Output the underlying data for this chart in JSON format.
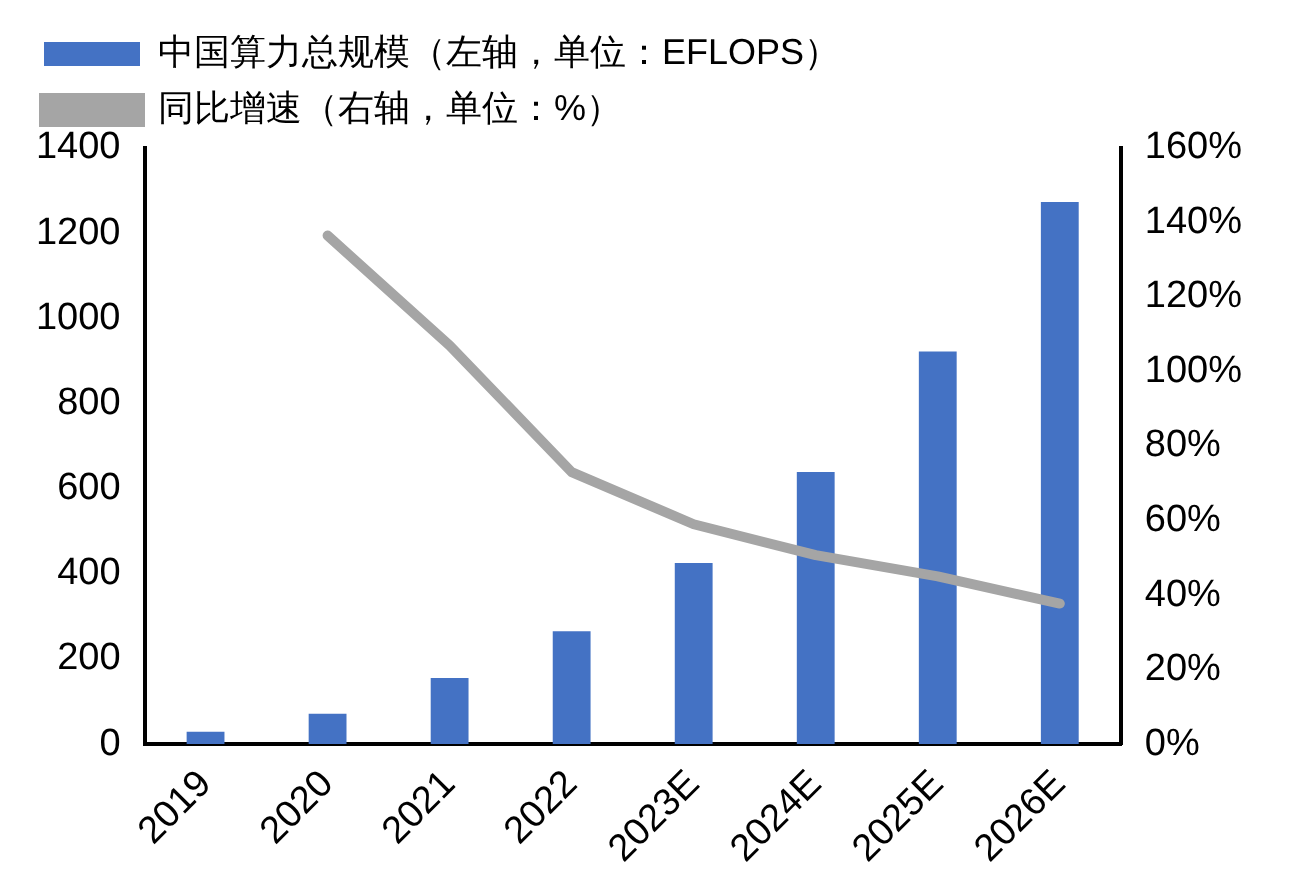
{
  "chart_data": {
    "type": "bar",
    "categories": [
      "2019",
      "2020",
      "2021",
      "2022",
      "2023E",
      "2024E",
      "2025E",
      "2026E"
    ],
    "series": [
      {
        "name": "中国算力总规模（左轴，单位：EFLOPS）",
        "color": "#4472c4",
        "values": [
          29,
          71,
          155,
          265,
          425,
          639,
          922,
          1273
        ]
      },
      {
        "name": "同比增速（右轴，单位：%）",
        "type": "line",
        "axis": "y2",
        "color": "#a5a5a5",
        "marker": "none",
        "values": [
          null,
          136.5,
          107,
          73,
          59,
          50.7,
          45,
          37.7
        ]
      }
    ],
    "ylim": [
      0,
      1400
    ],
    "yticks": [
      0,
      200,
      400,
      600,
      800,
      1000,
      1200,
      1400
    ],
    "y2lim": [
      0,
      160
    ],
    "y2ticks": [
      {
        "value": 0,
        "label": "0%"
      },
      {
        "value": 20,
        "label": "20%"
      },
      {
        "value": 40,
        "label": "40%"
      },
      {
        "value": 60,
        "label": "60%"
      },
      {
        "value": 80,
        "label": "80%"
      },
      {
        "value": 100,
        "label": "100%"
      },
      {
        "value": 120,
        "label": "120%"
      },
      {
        "value": 140,
        "label": "140%"
      },
      {
        "value": 160,
        "label": "160%"
      }
    ],
    "grid": false,
    "legend": "top"
  }
}
